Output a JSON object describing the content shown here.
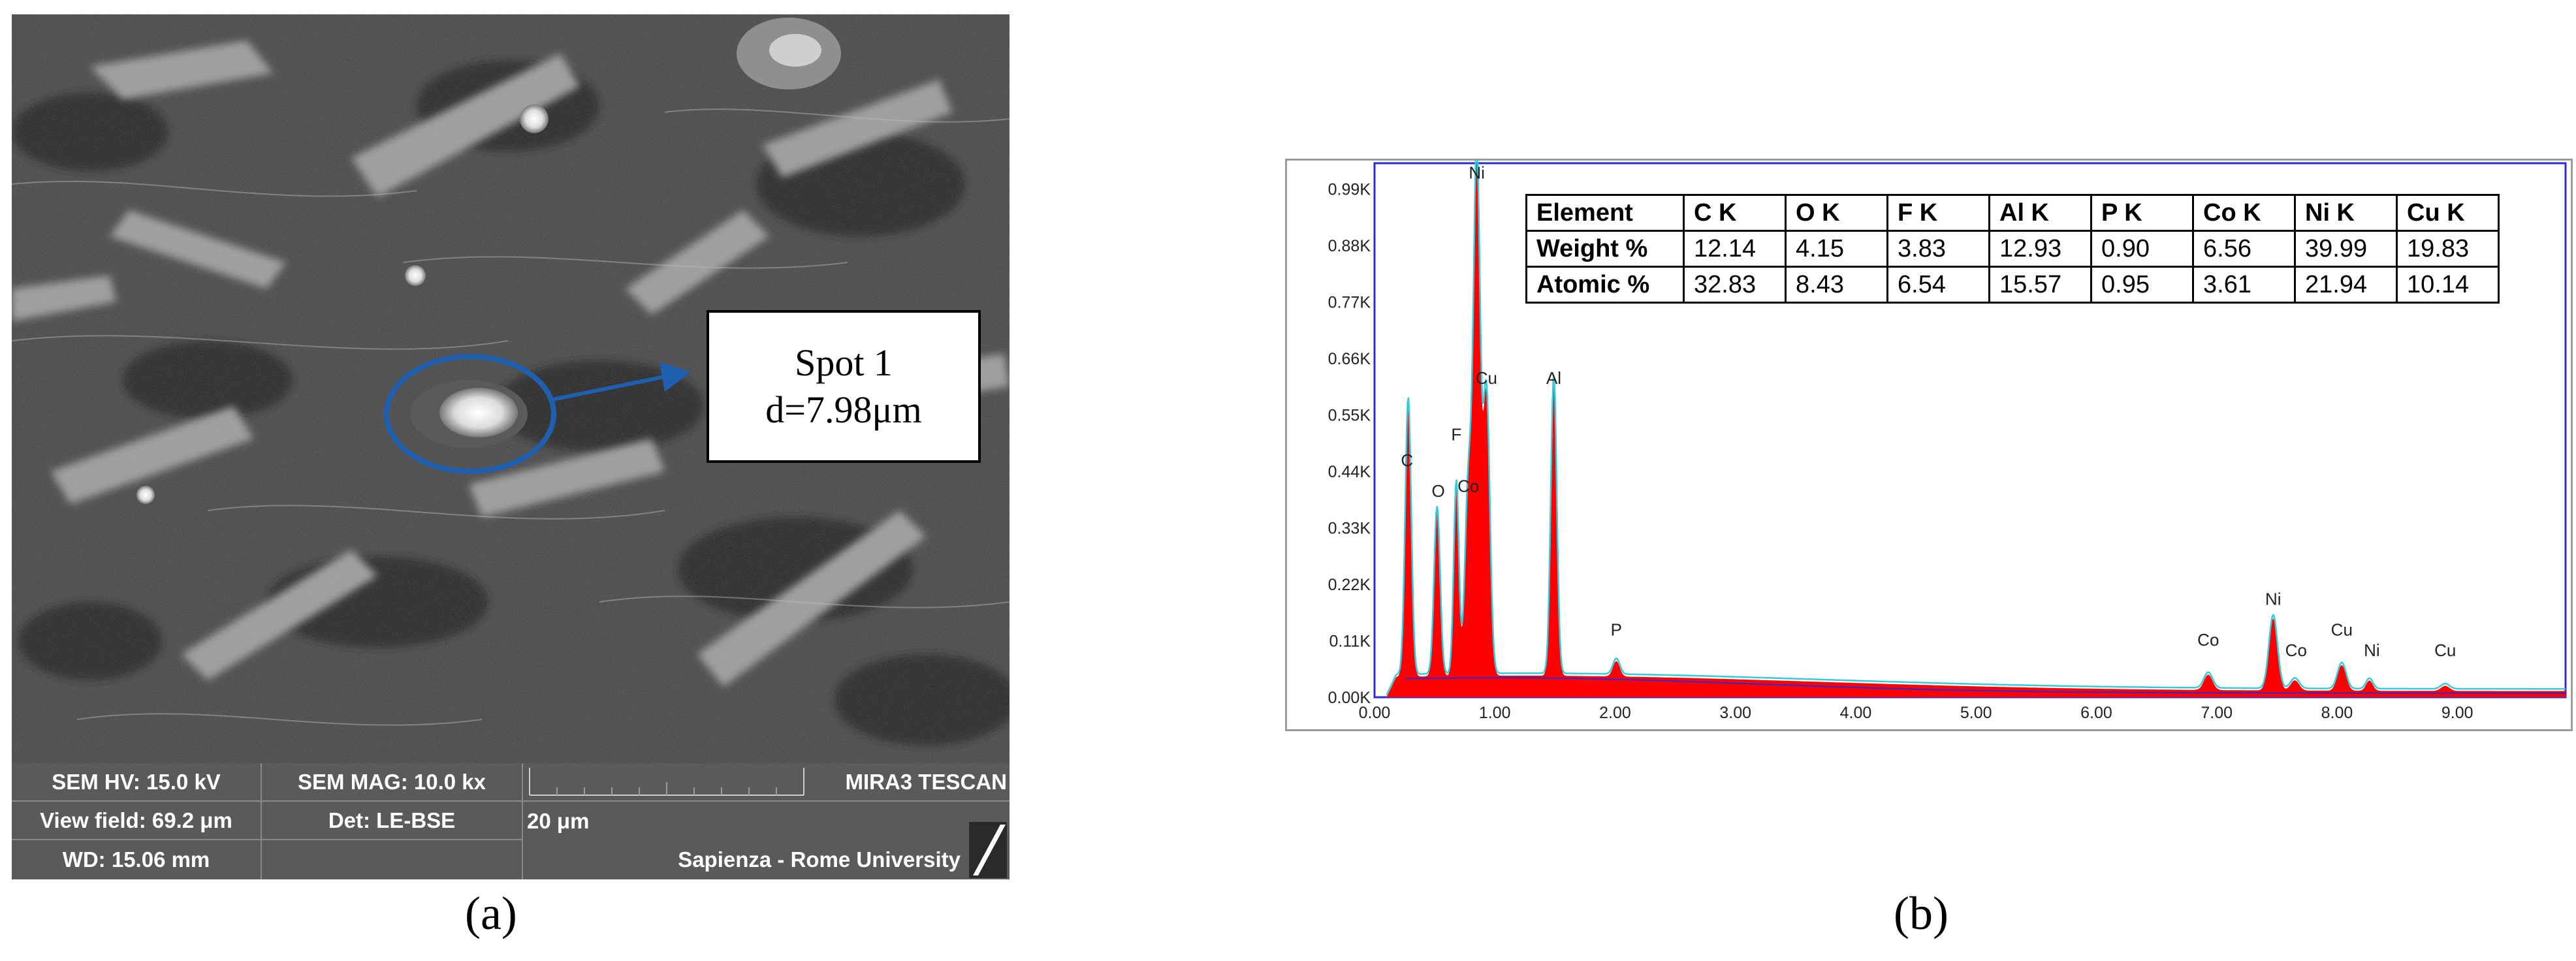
{
  "panel_a": {
    "caption": "(a)",
    "spot_label": {
      "line1": "Spot 1",
      "line2": "d=7.98μm"
    },
    "info_bar": {
      "hv": "SEM HV: 15.0 kV",
      "mag": "SEM MAG: 10.0 kx",
      "brand": "MIRA3 TESCAN",
      "view_field": "View field: 69.2 μm",
      "detector": "Det: LE-BSE",
      "scale": "20 μm",
      "wd": "WD: 15.06 mm",
      "institution": "Sapienza - Rome University"
    },
    "colors": {
      "annotation": "#1f5fb0"
    }
  },
  "panel_b": {
    "caption": "(b)",
    "table": {
      "header": [
        "Element",
        "C K",
        "O K",
        "F K",
        "Al K",
        "P K",
        "Co K",
        "Ni K",
        "Cu K"
      ],
      "rows": [
        {
          "label": "Weight %",
          "values": [
            "12.14",
            "4.15",
            "3.83",
            "12.93",
            "0.90",
            "6.56",
            "39.99",
            "19.83"
          ]
        },
        {
          "label": "Atomic %",
          "values": [
            "32.83",
            "8.43",
            "6.54",
            "15.57",
            "0.95",
            "3.61",
            "21.94",
            "10.14"
          ]
        }
      ]
    }
  },
  "chart_data": {
    "type": "area",
    "xlabel": "",
    "ylabel": "",
    "xlim": [
      0,
      9.9
    ],
    "ylim": [
      0,
      1.04
    ],
    "x_ticks": [
      "0.00",
      "1.00",
      "2.00",
      "3.00",
      "4.00",
      "5.00",
      "6.00",
      "7.00",
      "8.00",
      "9.00"
    ],
    "y_ticks": [
      "0.00K",
      "0.11K",
      "0.22K",
      "0.33K",
      "0.44K",
      "0.55K",
      "0.66K",
      "0.77K",
      "0.88K",
      "0.99K"
    ],
    "y_unit_k": [
      0,
      0.11,
      0.22,
      0.33,
      0.44,
      0.55,
      0.66,
      0.77,
      0.88,
      0.99
    ],
    "background_level_k": 0.03,
    "peaks": [
      {
        "label": "C",
        "x": 0.28,
        "height_k": 0.53,
        "width": 0.035,
        "label_x": 0.27,
        "label_y": 0.44
      },
      {
        "label": "O",
        "x": 0.52,
        "height_k": 0.32,
        "width": 0.035,
        "label_x": 0.53,
        "label_y": 0.38
      },
      {
        "label": "F",
        "x": 0.68,
        "height_k": 0.37,
        "width": 0.03,
        "label_x": 0.68,
        "label_y": 0.49
      },
      {
        "label": "Co",
        "x": 0.78,
        "height_k": 0.36,
        "width": 0.04,
        "label_x": 0.78,
        "label_y": 0.39
      },
      {
        "label": "Ni",
        "x": 0.85,
        "height_k": 0.99,
        "width": 0.04,
        "label_x": 0.85,
        "label_y": 1.0
      },
      {
        "label": "Cu",
        "x": 0.93,
        "height_k": 0.54,
        "width": 0.04,
        "label_x": 0.93,
        "label_y": 0.6
      },
      {
        "label": "Al",
        "x": 1.49,
        "height_k": 0.57,
        "width": 0.035,
        "label_x": 1.49,
        "label_y": 0.6
      },
      {
        "label": "P",
        "x": 2.01,
        "height_k": 0.03,
        "width": 0.04,
        "label_x": 2.01,
        "label_y": 0.11
      },
      {
        "label": "Co",
        "x": 6.93,
        "height_k": 0.03,
        "width": 0.05,
        "label_x": 6.93,
        "label_y": 0.09
      },
      {
        "label": "Ni",
        "x": 7.47,
        "height_k": 0.14,
        "width": 0.05,
        "label_x": 7.47,
        "label_y": 0.17
      },
      {
        "label": "Co",
        "x": 7.65,
        "height_k": 0.02,
        "width": 0.05,
        "label_x": 7.66,
        "label_y": 0.07
      },
      {
        "label": "Cu",
        "x": 8.04,
        "height_k": 0.05,
        "width": 0.05,
        "label_x": 8.04,
        "label_y": 0.11
      },
      {
        "label": "Ni",
        "x": 8.27,
        "height_k": 0.02,
        "width": 0.04,
        "label_x": 8.29,
        "label_y": 0.07
      },
      {
        "label": "Cu",
        "x": 8.9,
        "height_k": 0.01,
        "width": 0.05,
        "label_x": 8.9,
        "label_y": 0.07
      }
    ],
    "colors": {
      "fill": "#ff0000",
      "outline": "#33ccdd",
      "axis_frame": "#2b2bd6",
      "background_line": "#2b2bd6"
    }
  }
}
